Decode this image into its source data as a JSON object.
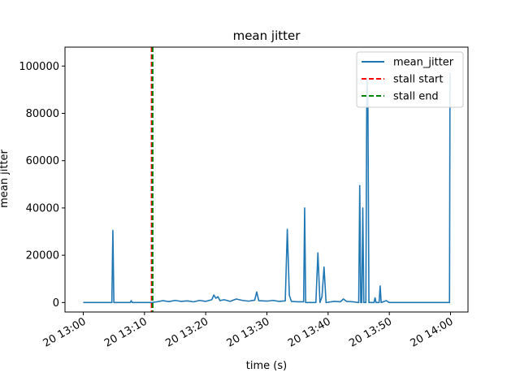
{
  "chart_data": {
    "type": "line",
    "title": "mean jitter",
    "xlabel": "time (s)",
    "ylabel": "mean jitter",
    "x_axis_type": "time",
    "xlim": [
      "13:00",
      "14:00"
    ],
    "ylim": [
      -4000,
      108000
    ],
    "x_ticks": [
      {
        "time": "13:00",
        "label": "20 13:00"
      },
      {
        "time": "13:10",
        "label": "20 13:10"
      },
      {
        "time": "13:20",
        "label": "20 13:20"
      },
      {
        "time": "13:30",
        "label": "20 13:30"
      },
      {
        "time": "13:40",
        "label": "20 13:40"
      },
      {
        "time": "13:50",
        "label": "20 13:50"
      },
      {
        "time": "14:00",
        "label": "20 14:00"
      }
    ],
    "y_ticks": [
      {
        "value": 0,
        "label": "0"
      },
      {
        "value": 20000,
        "label": "20000"
      },
      {
        "value": 40000,
        "label": "40000"
      },
      {
        "value": 60000,
        "label": "60000"
      },
      {
        "value": 80000,
        "label": "80000"
      },
      {
        "value": 100000,
        "label": "100000"
      }
    ],
    "grid": false,
    "legend_position": "top-right",
    "series": [
      {
        "name": "mean_jitter",
        "color": "#1f77b4",
        "points": [
          [
            "13:00:00",
            0
          ],
          [
            "13:04:40",
            0
          ],
          [
            "13:04:50",
            30500
          ],
          [
            "13:05:00",
            0
          ],
          [
            "13:07:40",
            0
          ],
          [
            "13:07:50",
            800
          ],
          [
            "13:08:00",
            0
          ],
          [
            "13:11:10",
            0
          ],
          [
            "13:12:00",
            300
          ],
          [
            "13:13:00",
            800
          ],
          [
            "13:14:00",
            400
          ],
          [
            "13:15:00",
            900
          ],
          [
            "13:16:00",
            500
          ],
          [
            "13:17:00",
            700
          ],
          [
            "13:18:00",
            300
          ],
          [
            "13:19:00",
            900
          ],
          [
            "13:20:00",
            500
          ],
          [
            "13:21:00",
            1200
          ],
          [
            "13:21:20",
            3200
          ],
          [
            "13:21:40",
            1800
          ],
          [
            "13:22:00",
            2500
          ],
          [
            "13:22:20",
            800
          ],
          [
            "13:23:00",
            1200
          ],
          [
            "13:24:00",
            500
          ],
          [
            "13:25:00",
            1500
          ],
          [
            "13:26:00",
            900
          ],
          [
            "13:27:00",
            600
          ],
          [
            "13:28:00",
            1000
          ],
          [
            "13:28:20",
            4500
          ],
          [
            "13:28:40",
            800
          ],
          [
            "13:30:00",
            600
          ],
          [
            "13:31:00",
            900
          ],
          [
            "13:32:00",
            500
          ],
          [
            "13:33:00",
            700
          ],
          [
            "13:33:20",
            31000
          ],
          [
            "13:33:40",
            3000
          ],
          [
            "13:34:00",
            500
          ],
          [
            "13:35:00",
            300
          ],
          [
            "13:36:00",
            300
          ],
          [
            "13:36:10",
            40000
          ],
          [
            "13:36:20",
            0
          ],
          [
            "13:38:00",
            0
          ],
          [
            "13:38:20",
            21000
          ],
          [
            "13:38:40",
            0
          ],
          [
            "13:39:00",
            2500
          ],
          [
            "13:39:20",
            15000
          ],
          [
            "13:39:40",
            0
          ],
          [
            "13:41:00",
            500
          ],
          [
            "13:42:00",
            300
          ],
          [
            "13:42:30",
            1500
          ],
          [
            "13:43:00",
            500
          ],
          [
            "13:44:00",
            300
          ],
          [
            "13:45:00",
            0
          ],
          [
            "13:45:10",
            49500
          ],
          [
            "13:45:20",
            0
          ],
          [
            "13:45:30",
            0
          ],
          [
            "13:45:40",
            40000
          ],
          [
            "13:45:50",
            0
          ],
          [
            "13:46:10",
            0
          ],
          [
            "13:46:20",
            95000
          ],
          [
            "13:46:30",
            85000
          ],
          [
            "13:46:40",
            0
          ],
          [
            "13:47:30",
            0
          ],
          [
            "13:47:40",
            2000
          ],
          [
            "13:47:50",
            0
          ],
          [
            "13:48:20",
            0
          ],
          [
            "13:48:30",
            7000
          ],
          [
            "13:48:40",
            0
          ],
          [
            "13:49:30",
            800
          ],
          [
            "13:50:00",
            0
          ],
          [
            "13:59:50",
            0
          ],
          [
            "13:59:55",
            97000
          ],
          [
            "14:00:00",
            97000
          ]
        ]
      }
    ],
    "vlines": [
      {
        "name": "stall start",
        "time": "13:11:10",
        "color": "#ff0000",
        "style": "dashed"
      },
      {
        "name": "stall end",
        "time": "13:11:20",
        "color": "#008000",
        "style": "dashed"
      }
    ]
  }
}
